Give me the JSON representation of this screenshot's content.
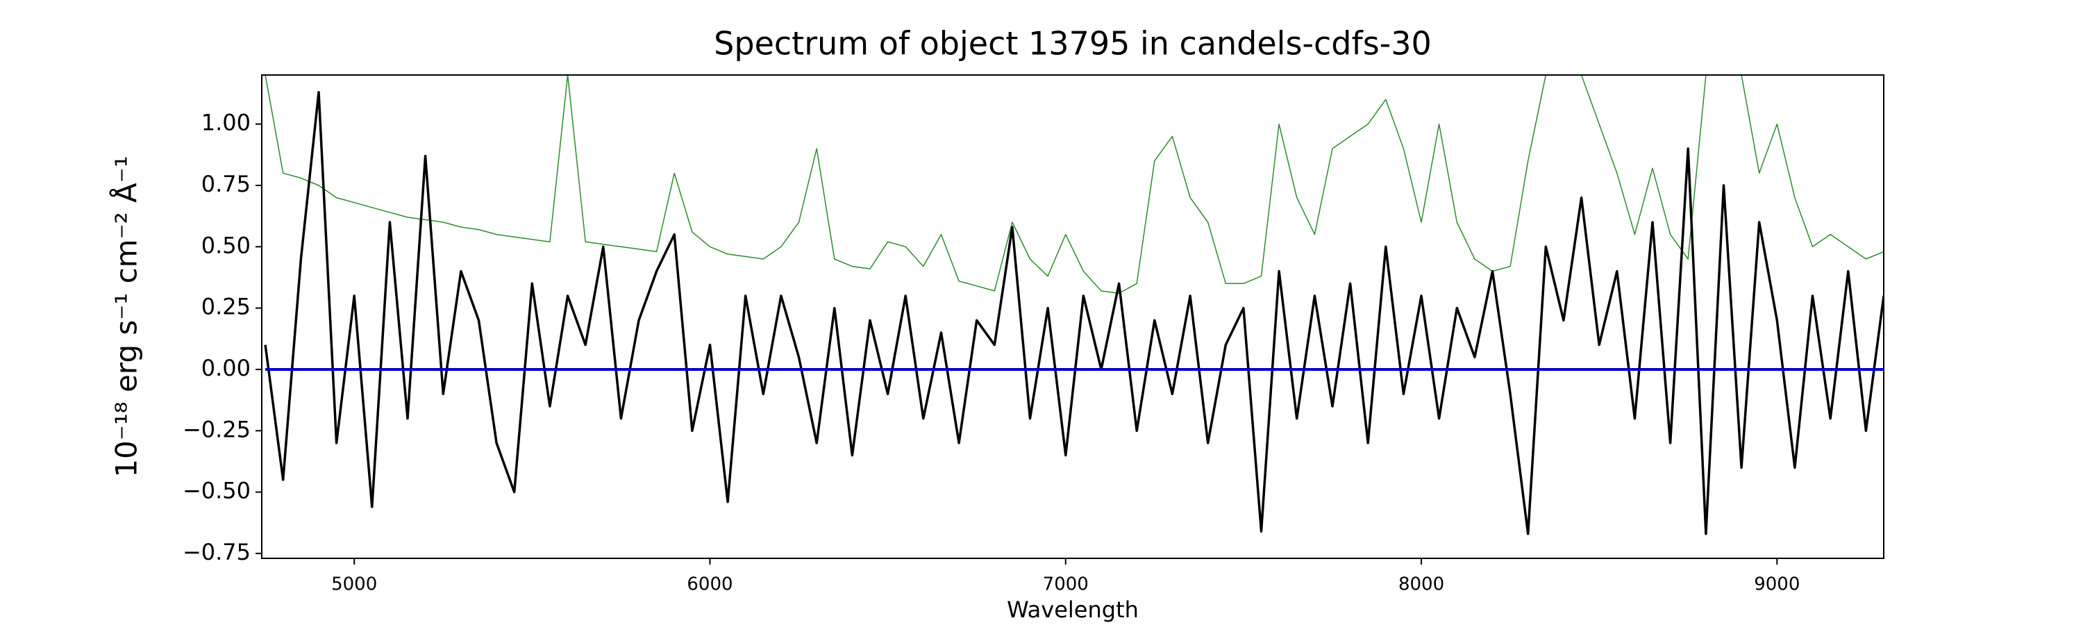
{
  "chart_data": {
    "type": "line",
    "title": "Spectrum of object 13795 in candels-cdfs-30",
    "xlabel": "Wavelength",
    "ylabel": "10⁻¹⁸ erg s⁻¹ cm⁻² Å⁻¹",
    "x": [
      4750,
      4800,
      4850,
      4900,
      4950,
      5000,
      5050,
      5100,
      5150,
      5200,
      5250,
      5300,
      5350,
      5400,
      5450,
      5500,
      5550,
      5600,
      5650,
      5700,
      5750,
      5800,
      5850,
      5900,
      5950,
      6000,
      6050,
      6100,
      6150,
      6200,
      6250,
      6300,
      6350,
      6400,
      6450,
      6500,
      6550,
      6600,
      6650,
      6700,
      6750,
      6800,
      6850,
      6900,
      6950,
      7000,
      7050,
      7100,
      7150,
      7200,
      7250,
      7300,
      7350,
      7400,
      7450,
      7500,
      7550,
      7600,
      7650,
      7700,
      7750,
      7800,
      7850,
      7900,
      7950,
      8000,
      8050,
      8100,
      8150,
      8200,
      8250,
      8300,
      8350,
      8400,
      8450,
      8500,
      8550,
      8600,
      8650,
      8700,
      8750,
      8800,
      8850,
      8900,
      8950,
      9000,
      9050,
      9100,
      9150,
      9200,
      9250,
      9300
    ],
    "series": [
      {
        "color": "#2e8b2e",
        "width": 1.5,
        "values": [
          1.2,
          0.8,
          0.78,
          0.75,
          0.7,
          0.68,
          0.66,
          0.64,
          0.62,
          0.61,
          0.6,
          0.58,
          0.57,
          0.55,
          0.54,
          0.53,
          0.52,
          1.2,
          0.52,
          0.51,
          0.5,
          0.49,
          0.48,
          0.8,
          0.56,
          0.5,
          0.47,
          0.46,
          0.45,
          0.5,
          0.6,
          0.9,
          0.45,
          0.42,
          0.41,
          0.52,
          0.5,
          0.42,
          0.55,
          0.36,
          0.34,
          0.32,
          0.6,
          0.45,
          0.38,
          0.55,
          0.4,
          0.32,
          0.31,
          0.35,
          0.85,
          0.95,
          0.7,
          0.6,
          0.35,
          0.35,
          0.38,
          1.0,
          0.7,
          0.55,
          0.9,
          0.95,
          1.0,
          1.1,
          0.9,
          0.6,
          1.0,
          0.6,
          0.45,
          0.4,
          0.42,
          0.85,
          1.2,
          1.2,
          1.2,
          1.0,
          0.8,
          0.55,
          0.82,
          0.55,
          0.45,
          1.2,
          1.2,
          1.2,
          0.8,
          1.0,
          0.7,
          0.5,
          0.55,
          0.5,
          0.45,
          0.48
        ]
      },
      {
        "color": "#000000",
        "width": 3.5,
        "values": [
          0.1,
          -0.45,
          0.45,
          1.13,
          -0.3,
          0.3,
          -0.56,
          0.6,
          -0.2,
          0.87,
          -0.1,
          0.4,
          0.2,
          -0.3,
          -0.5,
          0.35,
          -0.15,
          0.3,
          0.1,
          0.5,
          -0.2,
          0.2,
          0.4,
          0.55,
          -0.25,
          0.1,
          -0.54,
          0.3,
          -0.1,
          0.3,
          0.05,
          -0.3,
          0.25,
          -0.35,
          0.2,
          -0.1,
          0.3,
          -0.2,
          0.15,
          -0.3,
          0.2,
          0.1,
          0.58,
          -0.2,
          0.25,
          -0.35,
          0.3,
          0.0,
          0.35,
          -0.25,
          0.2,
          -0.1,
          0.3,
          -0.3,
          0.1,
          0.25,
          -0.66,
          0.4,
          -0.2,
          0.3,
          -0.15,
          0.35,
          -0.3,
          0.5,
          -0.1,
          0.3,
          -0.2,
          0.25,
          0.05,
          0.4,
          -0.1,
          -0.67,
          0.5,
          0.2,
          0.7,
          0.1,
          0.4,
          -0.2,
          0.6,
          -0.3,
          0.9,
          -0.67,
          0.75,
          -0.4,
          0.6,
          0.2,
          -0.4,
          0.3,
          -0.2,
          0.4,
          -0.25,
          0.3
        ]
      },
      {
        "color": "#0000cc",
        "width": 4,
        "values": [
          0,
          0,
          0,
          0,
          0,
          0,
          0,
          0,
          0,
          0,
          0,
          0,
          0,
          0,
          0,
          0,
          0,
          0,
          0,
          0,
          0,
          0,
          0,
          0,
          0,
          0,
          0,
          0,
          0,
          0,
          0,
          0,
          0,
          0,
          0,
          0,
          0,
          0,
          0,
          0,
          0,
          0,
          0,
          0,
          0,
          0,
          0,
          0,
          0,
          0,
          0,
          0,
          0,
          0,
          0,
          0,
          0,
          0,
          0,
          0,
          0,
          0,
          0,
          0,
          0,
          0,
          0,
          0,
          0,
          0,
          0,
          0,
          0,
          0,
          0,
          0,
          0,
          0,
          0,
          0,
          0,
          0,
          0,
          0,
          0,
          0,
          0,
          0,
          0,
          0,
          0,
          0
        ]
      }
    ],
    "xlim": [
      4740,
      9300
    ],
    "ylim": [
      -0.77,
      1.2
    ],
    "xticks": [
      5000,
      6000,
      7000,
      8000,
      9000
    ],
    "yticks": [
      {
        "value": -0.75,
        "label": "−0.75"
      },
      {
        "value": -0.5,
        "label": "−0.50"
      },
      {
        "value": -0.25,
        "label": "−0.25"
      },
      {
        "value": 0,
        "label": "0.00"
      },
      {
        "value": 0.25,
        "label": "0.25"
      },
      {
        "value": 0.5,
        "label": "0.50"
      },
      {
        "value": 0.75,
        "label": "0.75"
      },
      {
        "value": 1,
        "label": "1.00"
      }
    ],
    "grid": false
  }
}
